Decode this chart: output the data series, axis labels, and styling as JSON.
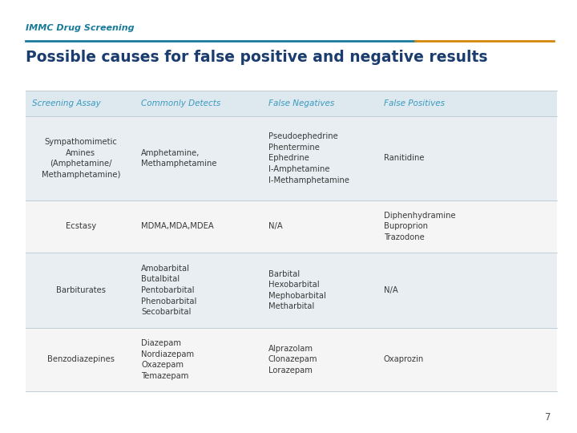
{
  "title": "Possible causes for false positive and negative results",
  "header": "IMMC Drug Screening",
  "page_num": "7",
  "bg_color": "#ffffff",
  "header_color": "#1a7a9a",
  "title_color": "#1a3c6e",
  "col_headers": [
    "Screening Assay",
    "Commonly Detects",
    "False Negatives",
    "False Positives"
  ],
  "col_header_color": "#3a9abf",
  "row_bg_even": "#e8eef2",
  "row_bg_odd": "#f5f5f5",
  "separator_line_colors": [
    "#1a7a9a",
    "#d4860a",
    "#7a2575"
  ],
  "table_text_color": "#3a3a3a",
  "rows": [
    {
      "col0": "Sympathomimetic\nAmines\n(Amphetamine/\nMethamphetamine)",
      "col1": "Amphetamine,\nMethamphetamine",
      "col2": "Pseudoephedrine\nPhentermine\nEphedrine\nl-Amphetamine\nl-Methamphetamine",
      "col3": "Ranitidine"
    },
    {
      "col0": "Ecstasy",
      "col1": "MDMA,MDA,MDEA",
      "col2": "N/A",
      "col3": "Diphenhydramine\nBuproprion\nTrazodone"
    },
    {
      "col0": "Barbiturates",
      "col1": "Amobarbital\nButalbital\nPentobarbital\nPhenobarbital\nSecobarbital",
      "col2": "Barbital\nHexobarbital\nMephobarbital\nMetharbital",
      "col3": "N/A"
    },
    {
      "col0": "Benzodiazepines",
      "col1": "Diazepam\nNordiazepam\nOxazepam\nTemazepam",
      "col2": "Alprazolam\nClonazepam\nLorazepam",
      "col3": "Oxaprozin"
    }
  ]
}
